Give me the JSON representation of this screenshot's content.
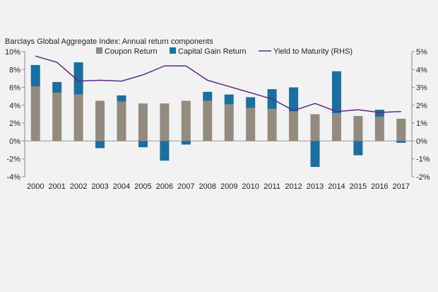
{
  "chart_data": {
    "type": "bar",
    "title": "Barclays Global Aggregate Index: Annual return components",
    "categories": [
      "2000",
      "2001",
      "2002",
      "2003",
      "2004",
      "2005",
      "2006",
      "2007",
      "2008",
      "2009",
      "2010",
      "2011",
      "2012",
      "2013",
      "2014",
      "2015",
      "2016",
      "2017"
    ],
    "series": [
      {
        "name": "Coupon Return",
        "type": "bar",
        "axis": "left",
        "color": "#948b7f",
        "values": [
          6.1,
          5.4,
          5.2,
          4.5,
          4.4,
          4.2,
          4.2,
          4.5,
          4.5,
          4.1,
          3.7,
          3.6,
          3.3,
          3.0,
          3.1,
          2.8,
          2.7,
          2.5
        ]
      },
      {
        "name": "Capital Gain Return",
        "type": "bar",
        "axis": "left",
        "color": "#1a6ea0",
        "values": [
          2.4,
          1.2,
          3.6,
          -0.8,
          0.7,
          -0.7,
          -2.2,
          -0.4,
          1.0,
          1.1,
          1.2,
          2.2,
          2.7,
          -2.9,
          4.7,
          -1.6,
          0.8,
          -0.2
        ]
      },
      {
        "name": "Yield to Maturity (RHS)",
        "type": "line",
        "axis": "right",
        "color": "#5b2a86",
        "values": [
          4.75,
          4.4,
          3.35,
          3.4,
          3.35,
          3.7,
          4.2,
          4.2,
          3.4,
          3.05,
          2.7,
          2.35,
          1.7,
          2.1,
          1.65,
          1.75,
          1.6,
          1.65
        ]
      }
    ],
    "left_axis": {
      "min": -4,
      "max": 10,
      "step": 2,
      "tick_labels": [
        "-4%",
        "-2%",
        "0%",
        "2%",
        "4%",
        "6%",
        "8%",
        "10%"
      ]
    },
    "right_axis": {
      "min": -2,
      "max": 5,
      "step": 1,
      "tick_labels": [
        "-2%",
        "-1%",
        "0%",
        "1%",
        "2%",
        "3%",
        "4%",
        "5%"
      ]
    },
    "legend_position": "top",
    "grid": false
  }
}
